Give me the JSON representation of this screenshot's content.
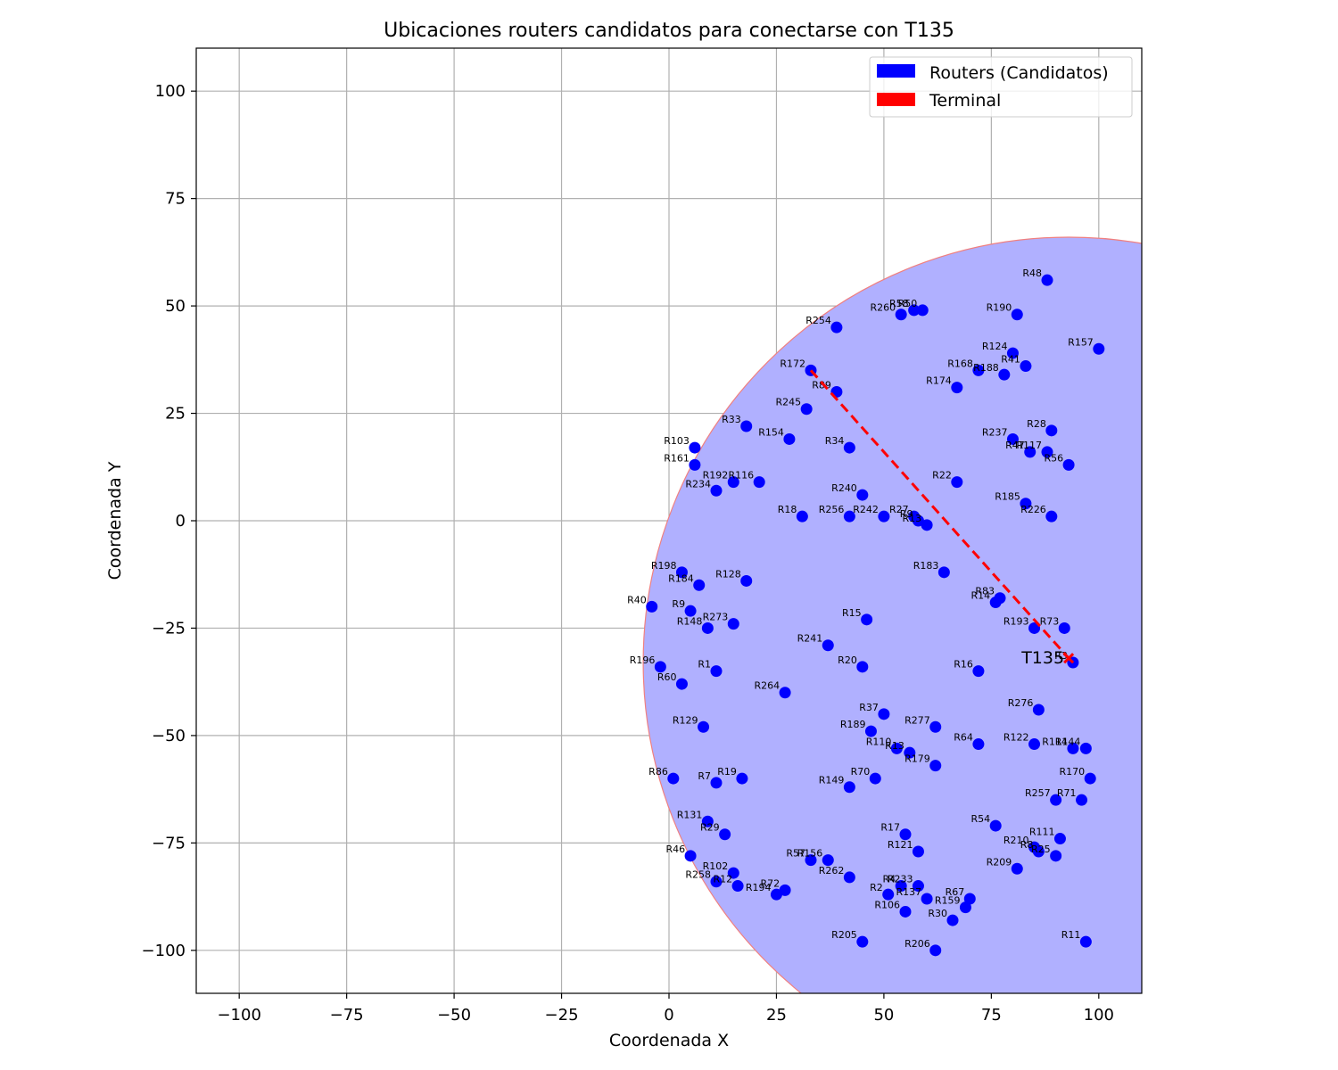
{
  "chart_data": {
    "type": "scatter",
    "title": "Ubicaciones routers candidatos para conectarse con T135",
    "xlabel": "Coordenada X",
    "ylabel": "Coordenada Y",
    "xlim": [
      -110,
      110
    ],
    "ylim": [
      -110,
      110
    ],
    "xticks": [
      -100,
      -75,
      -50,
      -25,
      0,
      25,
      50,
      75,
      100
    ],
    "yticks": [
      -100,
      -75,
      -50,
      -25,
      0,
      25,
      50,
      75,
      100
    ],
    "xtick_labels": [
      "−100",
      "−75",
      "−50",
      "−25",
      "0",
      "25",
      "50",
      "75",
      "100"
    ],
    "ytick_labels": [
      "−100",
      "−75",
      "−50",
      "−25",
      "0",
      "25",
      "50",
      "75",
      "100"
    ],
    "grid": true,
    "legend_position": "top-right",
    "legend": [
      {
        "label": "Routers (Candidatos)",
        "color": "#0000ff"
      },
      {
        "label": "Terminal",
        "color": "#ff0000"
      }
    ],
    "coverage_circle": {
      "center": [
        93,
        -33
      ],
      "radius": 99,
      "fill": "#b0b0ff",
      "stroke": "#f08080"
    },
    "connection_line": {
      "from": "R172",
      "to": "T135",
      "color": "#ff0000",
      "style": "dashed"
    },
    "terminal": {
      "name": "T135",
      "x": 93,
      "y": -32,
      "color": "#ff0000"
    },
    "routers": [
      {
        "name": "R48",
        "x": 88,
        "y": 56
      },
      {
        "name": "R260",
        "x": 54,
        "y": 48
      },
      {
        "name": "R58",
        "x": 57,
        "y": 49
      },
      {
        "name": "R50",
        "x": 59,
        "y": 49
      },
      {
        "name": "R190",
        "x": 81,
        "y": 48
      },
      {
        "name": "R254",
        "x": 39,
        "y": 45
      },
      {
        "name": "R157",
        "x": 100,
        "y": 40
      },
      {
        "name": "R124",
        "x": 80,
        "y": 39
      },
      {
        "name": "R41",
        "x": 83,
        "y": 36
      },
      {
        "name": "R172",
        "x": 33,
        "y": 35
      },
      {
        "name": "R168",
        "x": 72,
        "y": 35
      },
      {
        "name": "R188",
        "x": 78,
        "y": 34
      },
      {
        "name": "R174",
        "x": 67,
        "y": 31
      },
      {
        "name": "R89",
        "x": 39,
        "y": 30
      },
      {
        "name": "R245",
        "x": 32,
        "y": 26
      },
      {
        "name": "R33",
        "x": 18,
        "y": 22
      },
      {
        "name": "R28",
        "x": 89,
        "y": 21
      },
      {
        "name": "R154",
        "x": 28,
        "y": 19
      },
      {
        "name": "R237",
        "x": 80,
        "y": 19
      },
      {
        "name": "R103",
        "x": 6,
        "y": 17
      },
      {
        "name": "R34",
        "x": 42,
        "y": 17
      },
      {
        "name": "R47",
        "x": 84,
        "y": 16
      },
      {
        "name": "R117",
        "x": 88,
        "y": 16
      },
      {
        "name": "R56",
        "x": 93,
        "y": 13
      },
      {
        "name": "R161",
        "x": 6,
        "y": 13
      },
      {
        "name": "R192",
        "x": 15,
        "y": 9
      },
      {
        "name": "R116",
        "x": 21,
        "y": 9
      },
      {
        "name": "R22",
        "x": 67,
        "y": 9
      },
      {
        "name": "R234",
        "x": 11,
        "y": 7
      },
      {
        "name": "R240",
        "x": 45,
        "y": 6
      },
      {
        "name": "R185",
        "x": 83,
        "y": 4
      },
      {
        "name": "R18",
        "x": 31,
        "y": 1
      },
      {
        "name": "R256",
        "x": 42,
        "y": 1
      },
      {
        "name": "R242",
        "x": 50,
        "y": 1
      },
      {
        "name": "R27",
        "x": 57,
        "y": 1
      },
      {
        "name": "R226",
        "x": 89,
        "y": 1
      },
      {
        "name": "R9",
        "x": 58,
        "y": 0
      },
      {
        "name": "R13",
        "x": 60,
        "y": -1
      },
      {
        "name": "R198",
        "x": 3,
        "y": -12
      },
      {
        "name": "R183",
        "x": 64,
        "y": -12
      },
      {
        "name": "R128",
        "x": 18,
        "y": -14
      },
      {
        "name": "R184",
        "x": 7,
        "y": -15
      },
      {
        "name": "R83",
        "x": 77,
        "y": -18
      },
      {
        "name": "R14",
        "x": 76,
        "y": -19
      },
      {
        "name": "R40",
        "x": -4,
        "y": -20
      },
      {
        "name": "R9",
        "x": 5,
        "y": -21
      },
      {
        "name": "R15",
        "x": 46,
        "y": -23
      },
      {
        "name": "R273",
        "x": 15,
        "y": -24
      },
      {
        "name": "R148",
        "x": 9,
        "y": -25
      },
      {
        "name": "R193",
        "x": 85,
        "y": -25
      },
      {
        "name": "R73",
        "x": 92,
        "y": -25
      },
      {
        "name": "R241",
        "x": 37,
        "y": -29
      },
      {
        "name": "R3",
        "x": 94,
        "y": -33
      },
      {
        "name": "R196",
        "x": -2,
        "y": -34
      },
      {
        "name": "R20",
        "x": 45,
        "y": -34
      },
      {
        "name": "R1",
        "x": 11,
        "y": -35
      },
      {
        "name": "R16",
        "x": 72,
        "y": -35
      },
      {
        "name": "R60",
        "x": 3,
        "y": -38
      },
      {
        "name": "R264",
        "x": 27,
        "y": -40
      },
      {
        "name": "R276",
        "x": 86,
        "y": -44
      },
      {
        "name": "R37",
        "x": 50,
        "y": -45
      },
      {
        "name": "R129",
        "x": 8,
        "y": -48
      },
      {
        "name": "R277",
        "x": 62,
        "y": -48
      },
      {
        "name": "R189",
        "x": 47,
        "y": -49
      },
      {
        "name": "R64",
        "x": 72,
        "y": -52
      },
      {
        "name": "R122",
        "x": 85,
        "y": -52
      },
      {
        "name": "R110",
        "x": 53,
        "y": -53
      },
      {
        "name": "R13",
        "x": 56,
        "y": -54
      },
      {
        "name": "R114",
        "x": 94,
        "y": -53
      },
      {
        "name": "R144",
        "x": 97,
        "y": -53
      },
      {
        "name": "R179",
        "x": 62,
        "y": -57
      },
      {
        "name": "R86",
        "x": 1,
        "y": -60
      },
      {
        "name": "R19",
        "x": 17,
        "y": -60
      },
      {
        "name": "R70",
        "x": 48,
        "y": -60
      },
      {
        "name": "R170",
        "x": 98,
        "y": -60
      },
      {
        "name": "R7",
        "x": 11,
        "y": -61
      },
      {
        "name": "R149",
        "x": 42,
        "y": -62
      },
      {
        "name": "R257",
        "x": 90,
        "y": -65
      },
      {
        "name": "R71",
        "x": 96,
        "y": -65
      },
      {
        "name": "R131",
        "x": 9,
        "y": -70
      },
      {
        "name": "R54",
        "x": 76,
        "y": -71
      },
      {
        "name": "R29",
        "x": 13,
        "y": -73
      },
      {
        "name": "R17",
        "x": 55,
        "y": -73
      },
      {
        "name": "R111",
        "x": 91,
        "y": -74
      },
      {
        "name": "R210",
        "x": 85,
        "y": -76
      },
      {
        "name": "R8",
        "x": 86,
        "y": -77
      },
      {
        "name": "R121",
        "x": 58,
        "y": -77
      },
      {
        "name": "R25",
        "x": 90,
        "y": -78
      },
      {
        "name": "R46",
        "x": 5,
        "y": -78
      },
      {
        "name": "R57",
        "x": 33,
        "y": -79
      },
      {
        "name": "R156",
        "x": 37,
        "y": -79
      },
      {
        "name": "R209",
        "x": 81,
        "y": -81
      },
      {
        "name": "R102",
        "x": 15,
        "y": -82
      },
      {
        "name": "R262",
        "x": 42,
        "y": -83
      },
      {
        "name": "R258",
        "x": 11,
        "y": -84
      },
      {
        "name": "R12",
        "x": 16,
        "y": -85
      },
      {
        "name": "R4",
        "x": 54,
        "y": -85
      },
      {
        "name": "R233",
        "x": 58,
        "y": -85
      },
      {
        "name": "R72",
        "x": 27,
        "y": -86
      },
      {
        "name": "R194",
        "x": 25,
        "y": -87
      },
      {
        "name": "R2",
        "x": 51,
        "y": -87
      },
      {
        "name": "R137",
        "x": 60,
        "y": -88
      },
      {
        "name": "R67",
        "x": 70,
        "y": -88
      },
      {
        "name": "R159",
        "x": 69,
        "y": -90
      },
      {
        "name": "R106",
        "x": 55,
        "y": -91
      },
      {
        "name": "R30",
        "x": 66,
        "y": -93
      },
      {
        "name": "R205",
        "x": 45,
        "y": -98
      },
      {
        "name": "R11",
        "x": 97,
        "y": -98
      },
      {
        "name": "R206",
        "x": 62,
        "y": -100
      }
    ]
  }
}
